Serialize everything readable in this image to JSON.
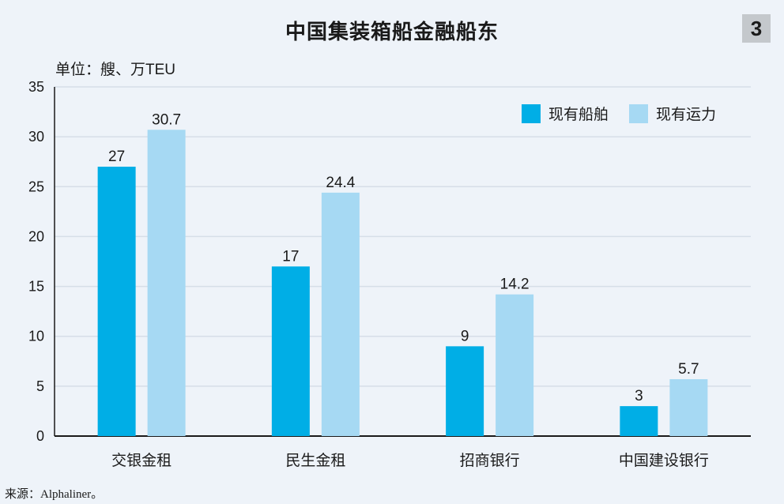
{
  "header": {
    "title": "中国集装箱船金融船东",
    "figure_number": "3",
    "unit": "单位：艘、万TEU"
  },
  "footer": {
    "source": "来源：Alphaliner。"
  },
  "colors": {
    "background": "#eef3f9",
    "series_1": "#00aee6",
    "series_2": "#a6d9f3",
    "gridline": "#d6dee8",
    "axis": "#1a1a1a",
    "figure_badge": "#c4c8cc"
  },
  "chart_data": {
    "type": "bar",
    "categories": [
      "交银金租",
      "民生金租",
      "招商银行",
      "中国建设银行"
    ],
    "series": [
      {
        "name": "现有船舶",
        "values": [
          27,
          17,
          9,
          3
        ]
      },
      {
        "name": "现有运力",
        "values": [
          30.7,
          24.4,
          14.2,
          5.7
        ]
      }
    ],
    "value_labels": [
      [
        "27",
        "17",
        "9",
        "3"
      ],
      [
        "30.7",
        "24.4",
        "14.2",
        "5.7"
      ]
    ],
    "ylim": [
      0,
      35
    ],
    "yticks": [
      0,
      5,
      10,
      15,
      20,
      25,
      30,
      35
    ],
    "grid": true,
    "legend": "top-right"
  }
}
